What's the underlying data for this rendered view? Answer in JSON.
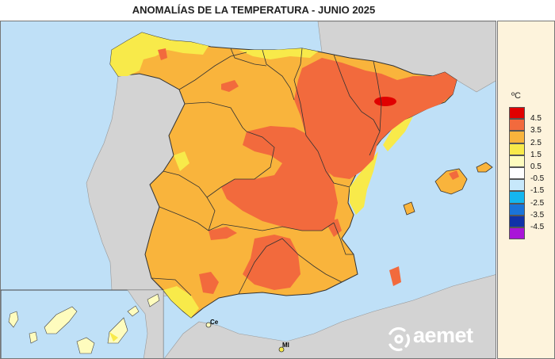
{
  "title": "ANOMALÍAS DE LA TEMPERATURA - JUNIO 2025",
  "legend": {
    "unit": "ºC",
    "classes": [
      {
        "color": "#e00000",
        "label": "4.5"
      },
      {
        "color": "#f26a3d",
        "label": "3.5"
      },
      {
        "color": "#f9b43c",
        "label": "2.5"
      },
      {
        "color": "#f8ea4a",
        "label": "1.5"
      },
      {
        "color": "#fefcbe",
        "label": "0.5"
      },
      {
        "color": "#ffffff",
        "label": "-0.5"
      },
      {
        "color": "#c7e8fb",
        "label": "-1.5"
      },
      {
        "color": "#14b6ef",
        "label": "-2.5"
      },
      {
        "color": "#1a74d9",
        "label": "-3.5"
      },
      {
        "color": "#1032a8",
        "label": "-4.5"
      },
      {
        "color": "#a915d8",
        "label": ""
      }
    ]
  },
  "map_labels": {
    "ceuta": "Ce",
    "melilla": "Ml"
  },
  "logo": {
    "text": "aemet"
  },
  "colors": {
    "sea": "#bfe0f7",
    "land_other": "#d3d3d3",
    "anomaly_0_5": "#fefcbe",
    "anomaly_1_5": "#f8ea4a",
    "anomaly_2_5": "#f9b43c",
    "anomaly_3_5": "#f26a3d",
    "anomaly_4_5": "#e00000"
  }
}
